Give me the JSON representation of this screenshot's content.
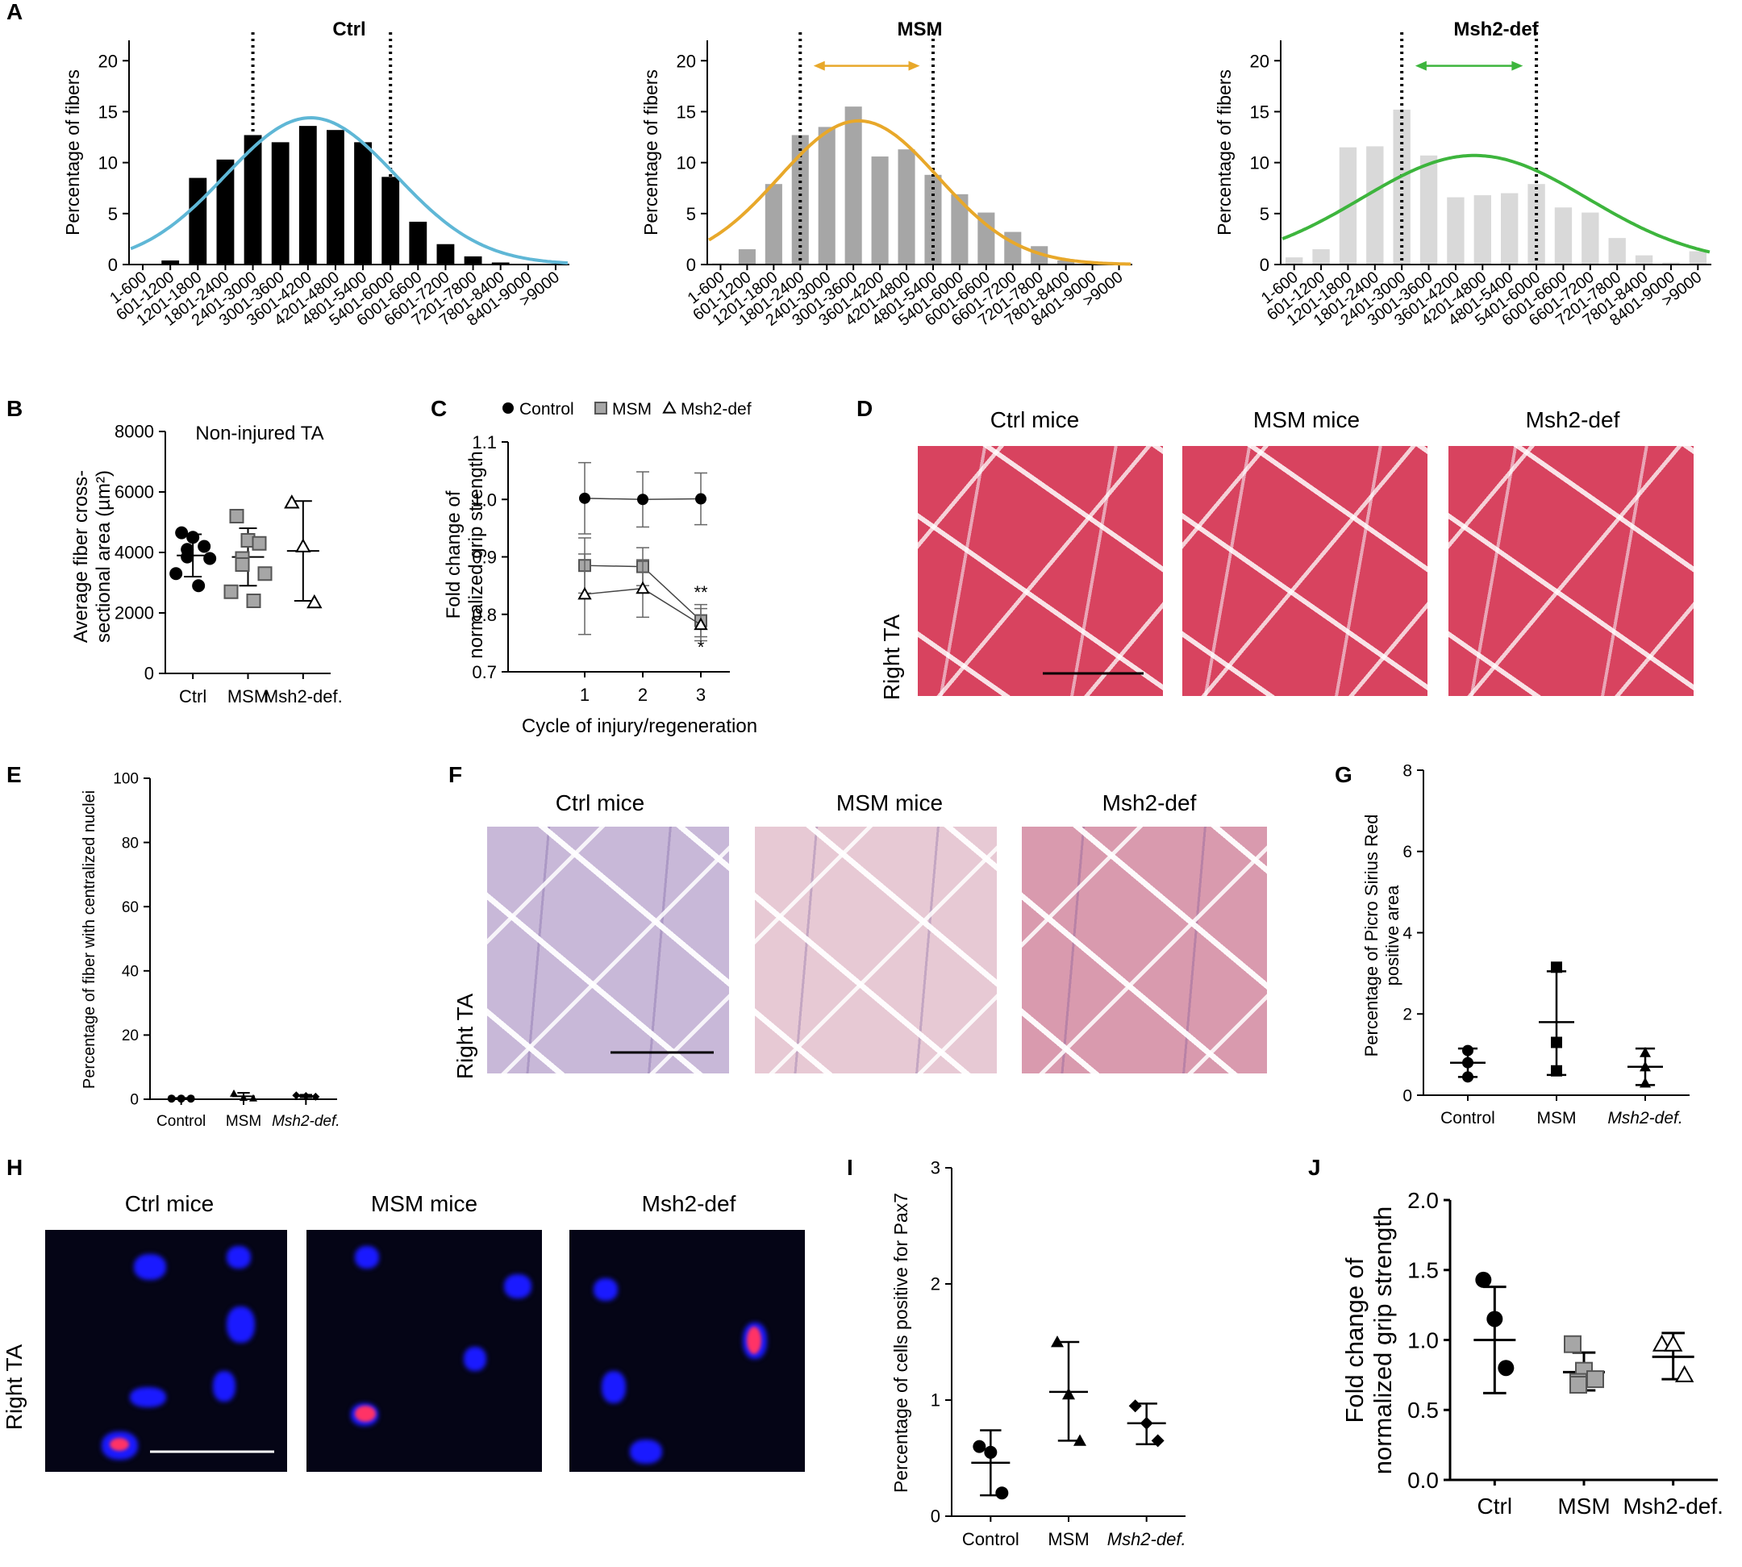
{
  "panel_letters": [
    "A",
    "B",
    "C",
    "D",
    "E",
    "F",
    "G",
    "H",
    "I",
    "J"
  ],
  "chart_data": [
    {
      "id": "A1",
      "type": "bar",
      "title": "Ctrl",
      "ylabel": "Percentage of fibers",
      "xlabel": "",
      "categories": [
        "1-600",
        "601-1200",
        "1201-1800",
        "1801-2400",
        "2401-3000",
        "3001-3600",
        "3601-4200",
        "4201-4800",
        "4801-5400",
        "5401-6000",
        "6001-6600",
        "6601-7200",
        "7201-7800",
        "7801-8400",
        "8401-9000",
        ">9000"
      ],
      "values": [
        0,
        0.4,
        8.5,
        10.3,
        12.7,
        12.0,
        13.6,
        13.2,
        12.0,
        8.6,
        4.2,
        2.0,
        0.8,
        0.2,
        0,
        0
      ],
      "yticks": [
        "0",
        "5",
        "10",
        "15",
        "20"
      ],
      "ylim": [
        0,
        22
      ],
      "fit": {
        "color": "#5fb7d6",
        "mean_index": 6.1,
        "sd": 3.1,
        "peak": 14.4
      },
      "bar_color": "#000000",
      "dashed_lines_at": [
        4.5,
        9.5
      ],
      "arrow": null
    },
    {
      "id": "A2",
      "type": "bar",
      "title": "MSM",
      "ylabel": "Percentage of fibers",
      "xlabel": "",
      "categories": [
        "1-600",
        "601-1200",
        "1201-1800",
        "1801-2400",
        "2401-3000",
        "3001-3600",
        "3601-4200",
        "4201-4800",
        "4801-5400",
        "5401-6000",
        "6001-6600",
        "6601-7200",
        "7201-7800",
        "7801-8400",
        "8401-9000",
        ">9000"
      ],
      "values": [
        0.1,
        1.5,
        7.9,
        12.7,
        13.5,
        15.5,
        10.6,
        11.3,
        8.8,
        6.9,
        5.1,
        3.2,
        1.8,
        0.4,
        0,
        0
      ],
      "yticks": [
        "0",
        "5",
        "10",
        "15",
        "20"
      ],
      "ylim": [
        0,
        22
      ],
      "fit": {
        "color": "#e8a82a",
        "mean_index": 5.2,
        "sd": 3.0,
        "peak": 14.1
      },
      "bar_color": "#a6a6a6",
      "dashed_lines_at": [
        3.5,
        8.5
      ],
      "arrow": {
        "from": 4.0,
        "to": 8.0,
        "y": 19.5,
        "color": "#e8a82a"
      }
    },
    {
      "id": "A3",
      "type": "bar",
      "title": "Msh2-def",
      "ylabel": "Percentage of fibers",
      "xlabel": "",
      "categories": [
        "1-600",
        "601-1200",
        "1201-1800",
        "1801-2400",
        "2401-3000",
        "3001-3600",
        "3601-4200",
        "4201-4800",
        "4801-5400",
        "5401-6000",
        "6001-6600",
        "6601-7200",
        "7201-7800",
        "7801-8400",
        "8401-9000",
        ">9000"
      ],
      "values": [
        0.7,
        1.5,
        11.5,
        11.6,
        15.2,
        10.7,
        6.6,
        6.8,
        7.0,
        7.9,
        5.6,
        5.1,
        2.6,
        0.9,
        0.2,
        1.3
      ],
      "yticks": [
        "0",
        "5",
        "10",
        "15",
        "20"
      ],
      "ylim": [
        0,
        22
      ],
      "fit": {
        "color": "#3db53d",
        "mean_index": 6.7,
        "sd": 4.2,
        "peak": 10.7
      },
      "bar_color": "#d9d9d9",
      "dashed_lines_at": [
        4.5,
        9.5
      ],
      "arrow": {
        "from": 5.0,
        "to": 9.0,
        "y": 19.5,
        "color": "#3db53d"
      }
    },
    {
      "id": "B",
      "type": "scatter",
      "title": "Non-injured TA",
      "ylabel": "Average fiber cross-\nsectional area (µm²)",
      "ylabel_lines": [
        "Average fiber cross-",
        "sectional area (µm²)"
      ],
      "categories": [
        "Ctrl",
        "MSM",
        "Msh2-def."
      ],
      "yticks": [
        "0",
        "2000",
        "4000",
        "6000",
        "8000"
      ],
      "ylim": [
        0,
        8000
      ],
      "groups": [
        {
          "marker": "circle-filled",
          "color": "#000000",
          "points": [
            4650,
            4500,
            4200,
            4100,
            3850,
            3800,
            3300,
            2900
          ],
          "mean": 3900,
          "sd_low": 3200,
          "sd_high": 4600
        },
        {
          "marker": "square-grey",
          "color": "#a6a6a6",
          "points": [
            5200,
            4400,
            4300,
            3800,
            3600,
            3300,
            2700,
            2400
          ],
          "mean": 3850,
          "sd_low": 2900,
          "sd_high": 4800
        },
        {
          "marker": "triangle-open",
          "color": "#000000",
          "points": [
            5650,
            4200,
            2350
          ],
          "mean": 4050,
          "sd_low": 2400,
          "sd_high": 5700
        }
      ]
    },
    {
      "id": "C",
      "type": "line",
      "xlabel": "Cycle of injury/regeneration",
      "ylabel_lines": [
        "Fold change of",
        "normalized grip strength"
      ],
      "x": [
        1,
        2,
        3
      ],
      "xticks": [
        "1",
        "2",
        "3"
      ],
      "yticks": [
        "0.7",
        "0.8",
        "0.9",
        "1.0",
        "1.1"
      ],
      "ylim": [
        0.7,
        1.1
      ],
      "series": [
        {
          "name": "Control",
          "marker": "circle-filled",
          "values": [
            1.002,
            1.0,
            1.001
          ],
          "err": [
            0.062,
            0.048,
            0.045
          ]
        },
        {
          "name": "MSM",
          "marker": "square-grey",
          "values": [
            0.885,
            0.883,
            0.789
          ],
          "err": [
            0.048,
            0.033,
            0.028
          ]
        },
        {
          "name": "Msh2-def",
          "marker": "triangle-open",
          "values": [
            0.835,
            0.845,
            0.782
          ],
          "err": [
            0.07,
            0.05,
            0.028
          ]
        }
      ],
      "annotations": [
        "**",
        "*"
      ]
    },
    {
      "id": "E",
      "type": "scatter",
      "ylabel": "Percentage of fiber with centralized nuclei",
      "categories": [
        "Control",
        "MSM",
        "Msh2-def."
      ],
      "yticks": [
        "0",
        "20",
        "40",
        "60",
        "80",
        "100"
      ],
      "ylim": [
        0,
        100
      ],
      "groups": [
        {
          "marker": "circle-filled",
          "points": [
            0.2,
            0.2,
            0.2
          ],
          "mean": 0.2,
          "sd_low": 0,
          "sd_high": 0.4
        },
        {
          "marker": "triangle-filled",
          "points": [
            1.8,
            0.5,
            0.3
          ],
          "mean": 0.9,
          "sd_low": 0,
          "sd_high": 2.0
        },
        {
          "marker": "diamond-filled",
          "points": [
            1.2,
            1.0,
            0.8
          ],
          "mean": 1.0,
          "sd_low": 0.6,
          "sd_high": 1.4
        }
      ]
    },
    {
      "id": "G",
      "type": "scatter",
      "ylabel_lines": [
        "Percentage of Picro Sirius Red",
        "positive area"
      ],
      "categories": [
        "Control",
        "MSM",
        "Msh2-def."
      ],
      "yticks": [
        "0",
        "2",
        "4",
        "6",
        "8"
      ],
      "ylim": [
        0,
        8
      ],
      "groups": [
        {
          "marker": "circle-filled",
          "points": [
            1.1,
            0.8,
            0.45
          ],
          "mean": 0.8,
          "sd_low": 0.45,
          "sd_high": 1.15
        },
        {
          "marker": "square-filled",
          "points": [
            3.15,
            1.3,
            0.6
          ],
          "mean": 1.8,
          "sd_low": 0.5,
          "sd_high": 3.05
        },
        {
          "marker": "triangle-filled",
          "points": [
            1.05,
            0.7,
            0.3
          ],
          "mean": 0.7,
          "sd_low": 0.25,
          "sd_high": 1.15
        }
      ]
    },
    {
      "id": "I",
      "type": "scatter",
      "ylabel": "Percentage of cells positive for Pax7",
      "categories": [
        "Control",
        "MSM",
        "Msh2-def."
      ],
      "yticks": [
        "0",
        "1",
        "2",
        "3"
      ],
      "ylim": [
        0,
        3
      ],
      "groups": [
        {
          "marker": "circle-filled",
          "points": [
            0.6,
            0.55,
            0.2
          ],
          "mean": 0.46,
          "sd_low": 0.18,
          "sd_high": 0.74
        },
        {
          "marker": "triangle-filled",
          "points": [
            1.5,
            1.05,
            0.65
          ],
          "mean": 1.07,
          "sd_low": 0.65,
          "sd_high": 1.5
        },
        {
          "marker": "diamond-filled",
          "points": [
            0.95,
            0.8,
            0.65
          ],
          "mean": 0.8,
          "sd_low": 0.62,
          "sd_high": 0.97
        }
      ]
    },
    {
      "id": "J",
      "type": "scatter",
      "ylabel_lines": [
        "Fold change of",
        "normalized grip strength"
      ],
      "categories": [
        "Ctrl",
        "MSM",
        "Msh2-def."
      ],
      "yticks": [
        "0.0",
        "0.5",
        "1.0",
        "1.5",
        "2.0"
      ],
      "ylim": [
        0,
        2.0
      ],
      "groups": [
        {
          "marker": "circle-filled",
          "points": [
            1.43,
            1.15,
            0.8
          ],
          "mean": 1.0,
          "sd_low": 0.62,
          "sd_high": 1.38
        },
        {
          "marker": "square-grey",
          "points": [
            0.97,
            0.78,
            0.72,
            0.7,
            0.68
          ],
          "mean": 0.77,
          "sd_low": 0.64,
          "sd_high": 0.91
        },
        {
          "marker": "triangle-open",
          "points": [
            0.97,
            0.97,
            0.75
          ],
          "mean": 0.88,
          "sd_low": 0.72,
          "sd_high": 1.05
        }
      ]
    }
  ],
  "micro": {
    "D": {
      "titles": [
        "Ctrl mice",
        "MSM mice",
        "Msh2-def"
      ],
      "side": "Right TA"
    },
    "F": {
      "titles": [
        "Ctrl mice",
        "MSM mice",
        "Msh2-def"
      ],
      "side": "Right TA"
    },
    "H": {
      "titles": [
        "Ctrl mice",
        "MSM mice",
        "Msh2-def"
      ],
      "side": "Right TA"
    }
  }
}
